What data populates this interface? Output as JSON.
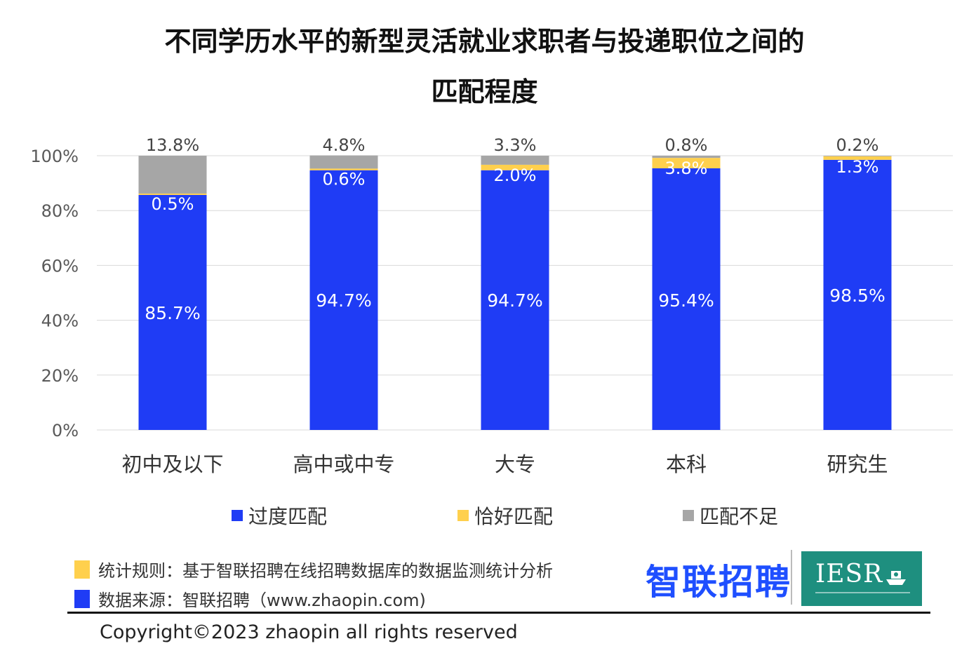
{
  "chart_data": {
    "type": "bar",
    "stacked": true,
    "title_line1": "不同学历水平的新型灵活就业求职者与投递职位之间的",
    "title_line2": "匹配程度",
    "categories": [
      "初中及以下",
      "高中或中专",
      "大专",
      "本科",
      "研究生"
    ],
    "series": [
      {
        "name": "过度匹配",
        "color": "#1f3cf5",
        "values": [
          85.7,
          94.7,
          94.7,
          95.4,
          98.5
        ],
        "labels": [
          "85.7%",
          "94.7%",
          "94.7%",
          "95.4%",
          "98.5%"
        ],
        "label_color": "#ffffff"
      },
      {
        "name": "恰好匹配",
        "color": "#ffd04d",
        "values": [
          0.5,
          0.6,
          2.0,
          3.8,
          1.3
        ],
        "labels": [
          "0.5%",
          "0.6%",
          "2.0%",
          "3.8%",
          "1.3%"
        ],
        "label_color": "#ffffff"
      },
      {
        "name": "匹配不足",
        "color": "#a6a6a6",
        "values": [
          13.8,
          4.8,
          3.3,
          0.8,
          0.2
        ],
        "labels": [
          "13.8%",
          "4.8%",
          "3.3%",
          "0.8%",
          "0.2%"
        ],
        "label_color": "#444444"
      }
    ],
    "y_ticks": [
      "0%",
      "20%",
      "40%",
      "60%",
      "80%",
      "100%"
    ],
    "ylim": [
      0,
      100
    ],
    "grid": true,
    "legend_position": "bottom"
  },
  "notes": {
    "rule": "统计规则：基于智联招聘在线招聘数据库的数据监测统计分析",
    "source": "数据来源：智联招聘（www.zhaopin.com)"
  },
  "brand": {
    "name": "智联招聘",
    "partner": "IESR"
  },
  "copyright": "Copyright©2023 zhaopin all rights reserved",
  "colors": {
    "note_rule": "#ffd04d",
    "note_source": "#1f3cf5"
  }
}
